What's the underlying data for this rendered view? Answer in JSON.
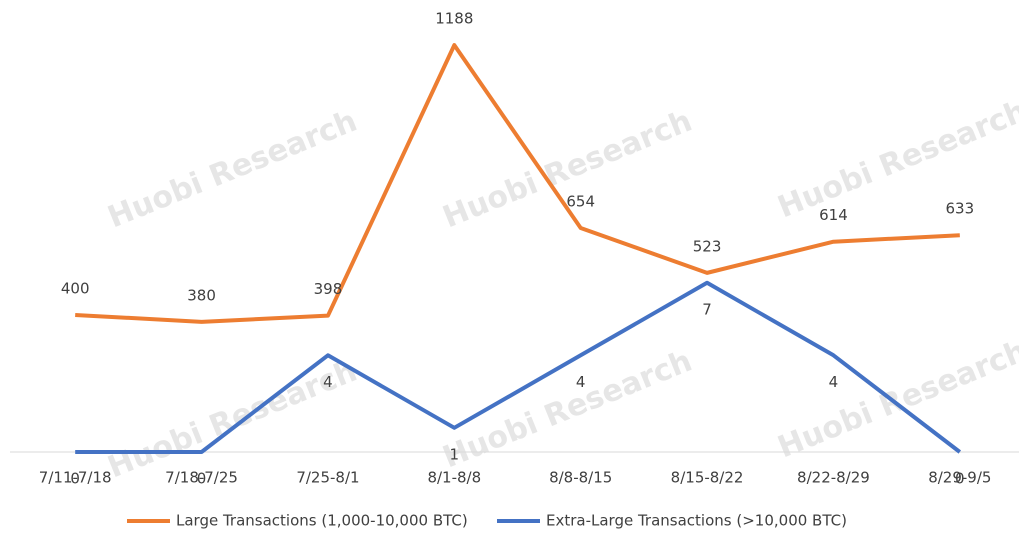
{
  "chart_data": {
    "type": "line",
    "watermark": "Huobi Research",
    "categories": [
      "7/11-7/18",
      "7/18-7/25",
      "7/25-8/1",
      "8/1-8/8",
      "8/8-8/15",
      "8/15-8/22",
      "8/22-8/29",
      "8/29-9/5"
    ],
    "series": [
      {
        "name": "Large Transactions (1,000-10,000 BTC)",
        "color": "#ed7d31",
        "values": [
          400,
          380,
          398,
          1188,
          654,
          523,
          614,
          633
        ]
      },
      {
        "name": "Extra-Large Transactions (>10,000 BTC)",
        "color": "#4472c4",
        "axis": "y2",
        "values": [
          0,
          0,
          4,
          1,
          4,
          7,
          4,
          0
        ]
      }
    ],
    "ylim": [
      0,
      1200
    ],
    "y2lim": [
      0,
      17
    ],
    "legend": "bottom"
  }
}
